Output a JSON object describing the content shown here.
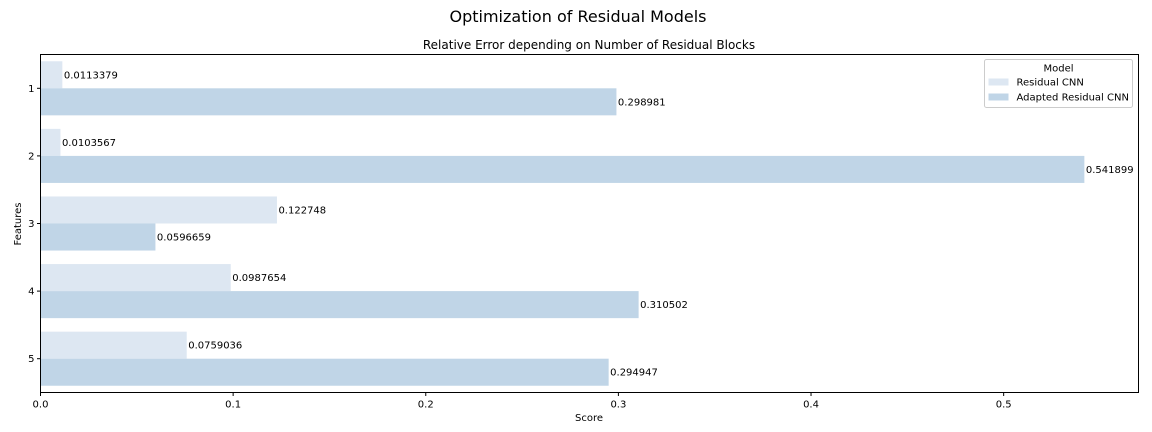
{
  "suptitle": "Optimization of Residual Models",
  "chart_data": {
    "type": "bar",
    "orientation": "horizontal",
    "title": "Relative Error depending on Number of Residual Blocks",
    "xlabel": "Score",
    "ylabel": "Features",
    "categories": [
      "1",
      "2",
      "3",
      "4",
      "5"
    ],
    "xlim": [
      0,
      0.57
    ],
    "xticks": [
      0.0,
      0.1,
      0.2,
      0.3,
      0.4,
      0.5
    ],
    "xtick_labels": [
      "0.0",
      "0.1",
      "0.2",
      "0.3",
      "0.4",
      "0.5"
    ],
    "grid": false,
    "legend": {
      "title": "Model",
      "placement": "top-right"
    },
    "series": [
      {
        "name": "Residual CNN",
        "color": "#dde7f2",
        "values": [
          0.0113379,
          0.0103567,
          0.122748,
          0.0987654,
          0.0759036
        ],
        "labels": [
          "0.0113379",
          "0.0103567",
          "0.122748",
          "0.0987654",
          "0.0759036"
        ]
      },
      {
        "name": "Adapted Residual CNN",
        "color": "#c0d5e7",
        "values": [
          0.298981,
          0.541899,
          0.0596659,
          0.310502,
          0.294947
        ],
        "labels": [
          "0.298981",
          "0.541899",
          "0.0596659",
          "0.310502",
          "0.294947"
        ]
      }
    ]
  }
}
